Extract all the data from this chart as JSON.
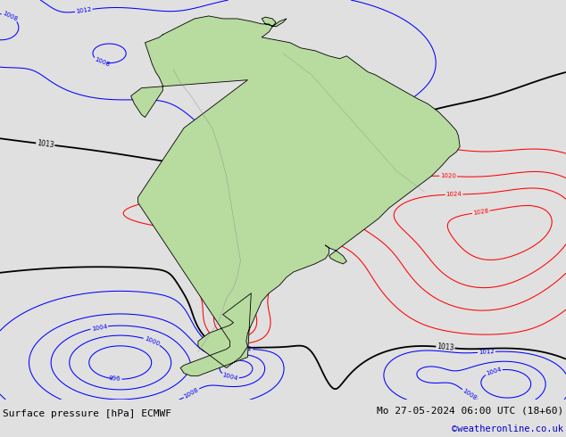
{
  "title_left": "Surface pressure [hPa] ECMWF",
  "title_right": "Mo 27-05-2024 06:00 UTC (18+60)",
  "copyright": "©weatheronline.co.uk",
  "fig_width": 6.34,
  "fig_height": 4.9,
  "bg_color": "#d0d0d0",
  "land_color_main": "#b8dba0",
  "land_color_dark": "#90c878",
  "footer_bg": "#e0e0e0",
  "copyright_color": "#0000cc",
  "footer_fontsize": 8.0,
  "map_lon_min": -100,
  "map_lon_max": -20,
  "map_lat_min": -60,
  "map_lat_max": 15
}
